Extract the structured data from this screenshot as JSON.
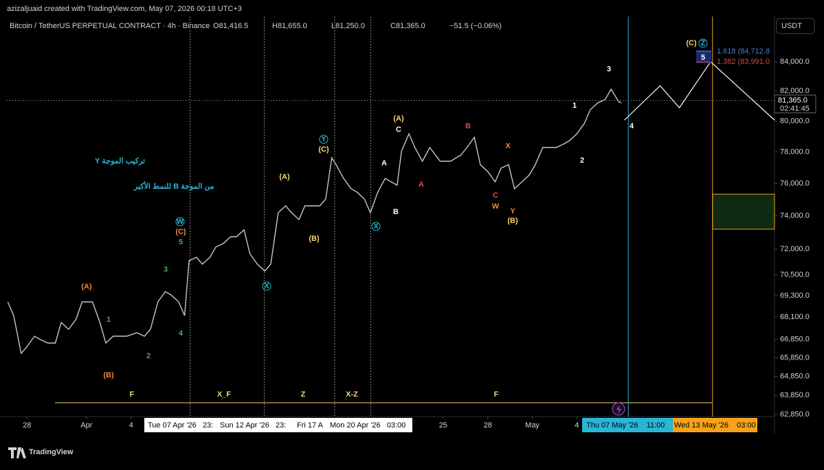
{
  "header": {
    "credit": "azizaljuaid created with TradingView.com, May 07, 2026 00:18 UTC+3",
    "symbol": "Bitcoin / TetherUS PERPETUAL CONTRACT · 4h · Binance",
    "ohlc": [
      "O81,416.5",
      "H81,655.0",
      "L81,250.0",
      "C81,365.0",
      "−51.5 (−0.06%)"
    ],
    "currency": "USDT",
    "countdown": "02:41:45",
    "brand": "TradingView"
  },
  "chart_data": {
    "type": "line",
    "log_scale": true,
    "color": "#c8c8c8",
    "x": [
      85.7,
      86.1,
      86.6,
      87.0,
      87.5,
      87.9,
      88.4,
      88.9,
      89.3,
      89.8,
      90.3,
      90.7,
      91.4,
      91.9,
      92.3,
      92.8,
      93.3,
      93.7,
      94.4,
      94.9,
      95.3,
      95.8,
      96.3,
      96.7,
      97.2,
      97.6,
      97.9,
      98.4,
      98.8,
      99.3,
      99.7,
      100.2,
      100.7,
      101.1,
      101.6,
      102.0,
      102.5,
      103.0,
      103.4,
      103.9,
      104.4,
      104.8,
      105.3,
      105.7,
      106.2,
      106.7,
      107.1,
      107.5,
      107.8,
      108.3,
      108.8,
      109.2,
      109.7,
      110.1,
      110.6,
      111.1,
      111.5,
      111.9,
      112.2,
      112.7,
      113.1,
      113.6,
      114.1,
      114.8,
      115.5,
      116.2,
      116.6,
      117.1,
      117.5,
      118.0,
      118.5,
      118.9,
      119.4,
      119.8,
      120.3,
      120.8,
      121.2,
      121.7,
      122.2,
      122.6,
      123.1,
      123.5,
      124.0,
      124.5,
      124.9,
      125.4,
      125.9,
      126.3,
      126.8,
      127.0
    ],
    "series": [
      {
        "name": "BTCUSDT",
        "color": "#c8c8c8",
        "values": [
          68945,
          68171,
          66087,
          66461,
          67026,
          66837,
          66649,
          66649,
          67787,
          67406,
          67979,
          68945,
          68945,
          67787,
          66649,
          67026,
          67026,
          67026,
          67216,
          67026,
          67406,
          68945,
          69530,
          69335,
          68945,
          68171,
          71319,
          71521,
          71119,
          71521,
          72129,
          72332,
          72741,
          72741,
          73153,
          71723,
          71119,
          70718,
          71119,
          74193,
          74613,
          74193,
          73775,
          74613,
          74613,
          74613,
          75035,
          77619,
          77183,
          76316,
          75673,
          75460,
          75035,
          74193,
          75460,
          76316,
          76101,
          75887,
          78058,
          79167,
          78279,
          77401,
          78279,
          77401,
          77401,
          77801,
          78279,
          78944,
          77183,
          76748,
          76101,
          76966,
          77183,
          75673,
          76101,
          76531,
          77183,
          78279,
          78279,
          78279,
          78500,
          78722,
          79167,
          79840,
          80746,
          81203,
          81432,
          82125,
          81295,
          81203
        ]
      },
      {
        "name": "projection",
        "color": "#ffffff",
        "x": [
          127.2,
          129.6,
          130.9,
          133.0,
          137.3
        ],
        "values": [
          80066,
          82359,
          80883,
          84000,
          80066
        ]
      }
    ],
    "xlim": [
      85.64,
      137.3
    ],
    "ylim": [
      62744,
      87190
    ],
    "yticks": [
      {
        "value": 84000,
        "label": "84,000.0"
      },
      {
        "value": 82000,
        "label": "82,000.0"
      },
      {
        "value": 80000,
        "label": "80,000.0"
      },
      {
        "value": 78000,
        "label": "78,000.0"
      },
      {
        "value": 76000,
        "label": "76,000.0"
      },
      {
        "value": 74000,
        "label": "74,000.0"
      },
      {
        "value": 72000,
        "label": "72,000.0"
      },
      {
        "value": 70500,
        "label": "70,500.0"
      },
      {
        "value": 69300,
        "label": "69,300.0"
      },
      {
        "value": 68100,
        "label": "68,100.0"
      },
      {
        "value": 66850,
        "label": "66,850.0"
      },
      {
        "value": 65850,
        "label": "65,850.0"
      },
      {
        "value": 64850,
        "label": "64,850.0"
      },
      {
        "value": 63850,
        "label": "63,850.0"
      },
      {
        "value": 62850,
        "label": "62,850.0"
      }
    ],
    "xticks": [
      {
        "value": 87,
        "label": "28"
      },
      {
        "value": 91,
        "label": "Apr"
      },
      {
        "value": 94,
        "label": "4"
      },
      {
        "value": 115,
        "label": "25"
      },
      {
        "value": 118,
        "label": "28"
      },
      {
        "value": 121,
        "label": "May"
      },
      {
        "value": 124,
        "label": "4"
      }
    ],
    "last_price": {
      "value": 81365,
      "label": "81,365.0"
    },
    "markers": [
      {
        "value": 97.96,
        "label": "Tue 07 Apr '26   23:"
      },
      {
        "value": 102.96,
        "label": "Sun 12 Apr '26   23:"
      },
      {
        "value": 107.7,
        "label": "Fri 17 A"
      },
      {
        "value": 110.125,
        "label": "Mon 20 Apr '26   03:00"
      },
      {
        "value": 127.46,
        "label": "Thu 07 May '26    11:00",
        "color": "#29b6d6"
      },
      {
        "value": 133.125,
        "label": "Wed 13 May '26    03:00",
        "color": "#f7a21b"
      }
    ],
    "fib_levels": [
      {
        "value": 84712.8,
        "label": "1.618 (84,712.8",
        "color": "#4a7bd8"
      },
      {
        "value": 83991,
        "label": "1.382 (83,991.0",
        "color": "#e04545"
      }
    ],
    "zone": [
      73194,
      75334
    ],
    "baseline": 63456,
    "annotations": [
      {
        "text": "(A)",
        "color": "#f0883e"
      },
      {
        "text": "1",
        "color": "#4caf50"
      },
      {
        "text": "(B)",
        "color": "#f0883e"
      },
      {
        "text": "2",
        "color": "#4caf50"
      },
      {
        "text": "3",
        "color": "#4caf50"
      },
      {
        "text": "4",
        "color": "#4caf50"
      },
      {
        "text": "W",
        "color": "#29b6d6"
      },
      {
        "text": "(C)",
        "color": "#f0883e"
      },
      {
        "text": "5",
        "color": "#4caf50"
      },
      {
        "text": "X",
        "color": "#29b6d6"
      },
      {
        "text": "(A)",
        "color": "#f5d76e"
      },
      {
        "text": "(B)",
        "color": "#f5d76e"
      },
      {
        "text": "Y",
        "color": "#29b6d6"
      },
      {
        "text": "(C)",
        "color": "#f5d76e"
      },
      {
        "text": "X",
        "color": "#29b6d6"
      },
      {
        "text": "A",
        "color": "#ffffff"
      },
      {
        "text": "B",
        "color": "#ffffff"
      },
      {
        "text": "C",
        "color": "#ffffff"
      },
      {
        "text": "(A)",
        "color": "#f5d76e"
      },
      {
        "text": "A",
        "color": "#e04545"
      },
      {
        "text": "B",
        "color": "#e04545"
      },
      {
        "text": "C",
        "color": "#e04545"
      },
      {
        "text": "W",
        "color": "#f0883e"
      },
      {
        "text": "X",
        "color": "#f0883e"
      },
      {
        "text": "Y",
        "color": "#f0883e"
      },
      {
        "text": "(B)",
        "color": "#f5d76e"
      },
      {
        "text": "1",
        "color": "#ffffff"
      },
      {
        "text": "2",
        "color": "#ffffff"
      },
      {
        "text": "3",
        "color": "#ffffff"
      },
      {
        "text": "4",
        "color": "#ffffff"
      },
      {
        "text": "(C)",
        "color": "#f5d76e"
      },
      {
        "text": "Z",
        "color": "#29b6d6"
      },
      {
        "text": "5",
        "color": "#ffffff"
      }
    ],
    "wave_labels": [
      "F",
      "X_F",
      "Z",
      "X-Z",
      "F"
    ],
    "notes": [
      "تركيب الموجة Y",
      "من الموجة B للنمط الأكبر"
    ]
  }
}
